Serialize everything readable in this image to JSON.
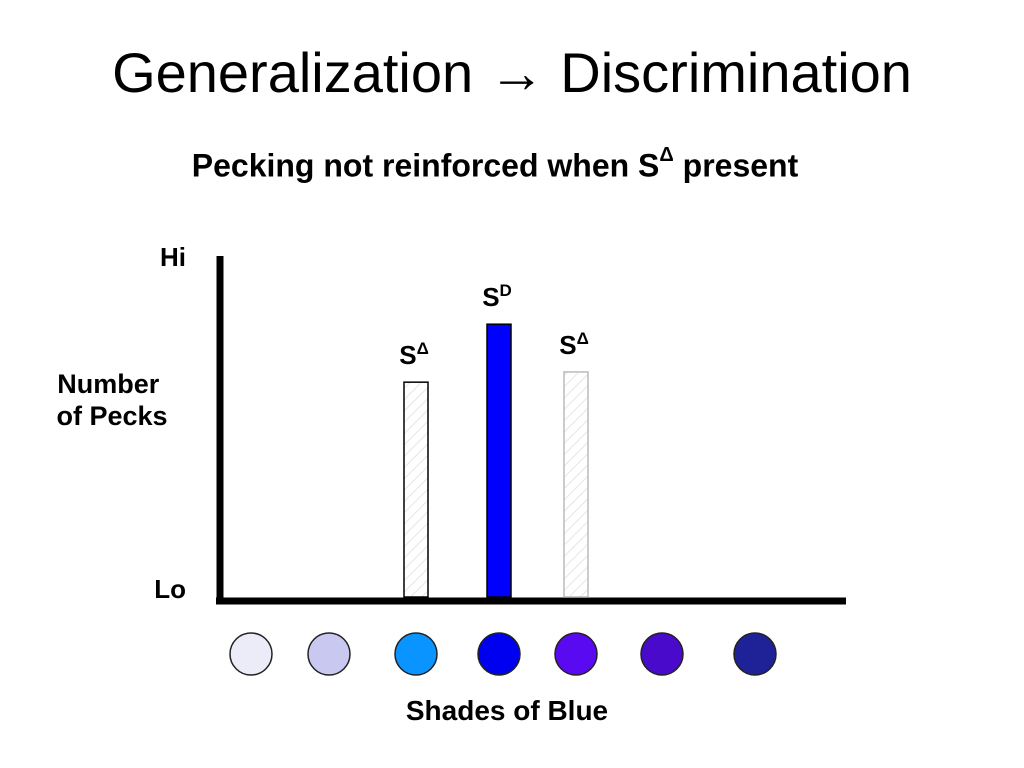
{
  "slide": {
    "title_left": "Generalization",
    "title_arrow": "→",
    "title_right": "Discrimination",
    "subtitle_main": "Pecking not reinforced when S",
    "subtitle_sup": "Δ",
    "subtitle_end": "present"
  },
  "chart_data": {
    "type": "bar",
    "ylabel": [
      "Number",
      "of Pecks"
    ],
    "xlabel": "Shades of Blue",
    "y_tick_top": "Hi",
    "y_tick_bottom": "Lo",
    "ylim": [
      0,
      1
    ],
    "categories": [
      "#ececf8",
      "#c8c8f0",
      "#0a94ff",
      "#0000f0",
      "#5a0af0",
      "#4a0acc",
      "#1e2296"
    ],
    "values": [
      0,
      0,
      0.63,
      0.8,
      0.66,
      0,
      0
    ],
    "bars": [
      {
        "category_index": 2,
        "value": 0.63,
        "fill": "hatch-white",
        "stroke": "#000000",
        "label_base": "S",
        "label_sup": "Δ"
      },
      {
        "category_index": 3,
        "value": 0.8,
        "fill": "#0000ff",
        "stroke": "#000000",
        "label_base": "S",
        "label_sup": "D"
      },
      {
        "category_index": 4,
        "value": 0.66,
        "fill": "hatch-white",
        "stroke": "#bbbbbb",
        "label_base": "S",
        "label_sup": "Δ"
      }
    ],
    "grid": false
  }
}
